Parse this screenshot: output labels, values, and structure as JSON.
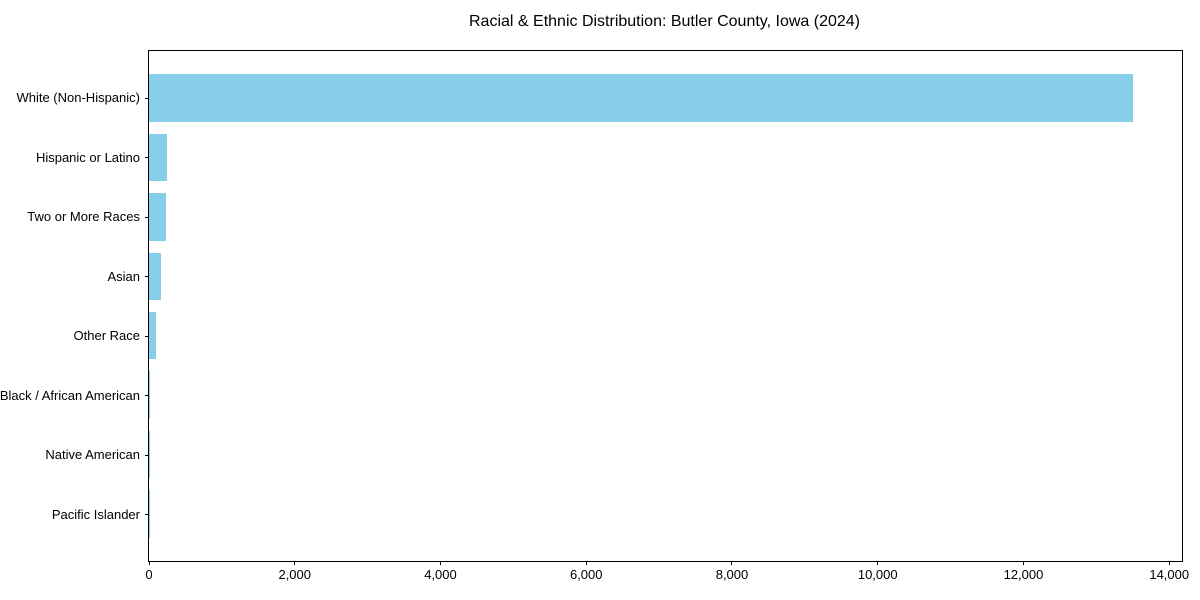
{
  "chart_data": {
    "type": "bar",
    "orientation": "horizontal",
    "title": "Racial & Ethnic Distribution: Butler County, Iowa (2024)",
    "categories": [
      "White (Non-Hispanic)",
      "Hispanic or Latino",
      "Two or More Races",
      "Asian",
      "Other Race",
      "Black / African American",
      "Native American",
      "Pacific Islander"
    ],
    "values": [
      13500,
      245,
      230,
      170,
      90,
      20,
      10,
      3
    ],
    "xlabel": "",
    "ylabel": "",
    "xlim": [
      0,
      14175
    ],
    "x_ticks": [
      0,
      2000,
      4000,
      6000,
      8000,
      10000,
      12000,
      14000
    ],
    "x_tick_labels": [
      "0",
      "2,000",
      "4,000",
      "6,000",
      "8,000",
      "10,000",
      "12,000",
      "14,000"
    ],
    "grid": false,
    "legend": "none",
    "bar_height_fraction": 0.8,
    "y_margin_units": 0.79,
    "colors": {
      "bar": "#87CEEB",
      "axis": "#000000",
      "text": "#000000",
      "background": "#ffffff"
    }
  }
}
